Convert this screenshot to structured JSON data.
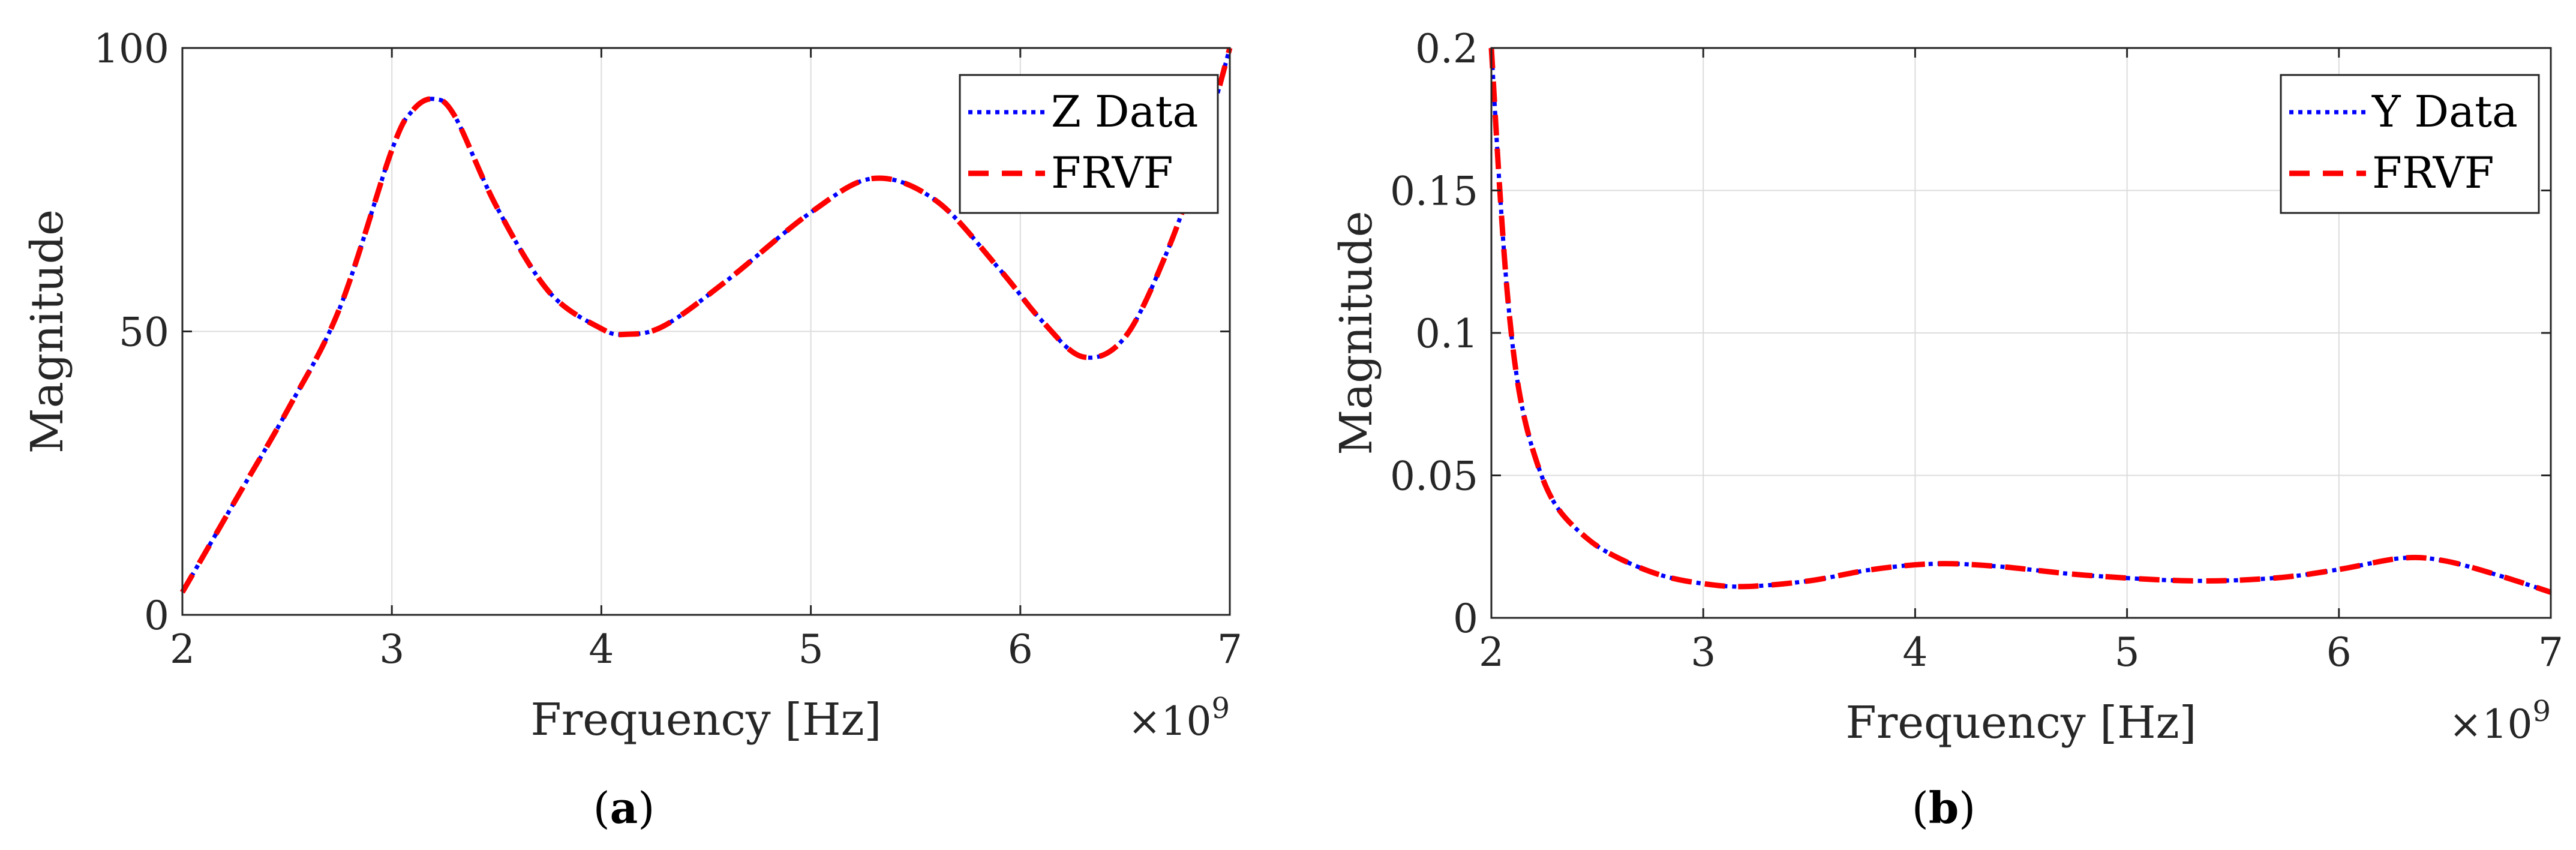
{
  "chart_data": [
    {
      "type": "line",
      "panel": "a",
      "caption_letter": "a",
      "xlabel": "Frequency [Hz]",
      "ylabel": "Magnitude",
      "x_exponent": "9",
      "x_multiplier": "×10",
      "xlim": [
        2,
        7
      ],
      "ylim": [
        0,
        100
      ],
      "xticks": [
        "2",
        "3",
        "4",
        "5",
        "6",
        "7"
      ],
      "xtick_values": [
        2,
        3,
        4,
        5,
        6,
        7
      ],
      "yticks": [
        "0",
        "50",
        "100"
      ],
      "ytick_values": [
        0,
        50,
        100
      ],
      "grid": true,
      "legend_position": "top-right",
      "x": [
        2.0,
        2.25,
        2.5,
        2.75,
        3.0,
        3.1,
        3.2,
        3.3,
        3.5,
        3.75,
        4.0,
        4.12,
        4.3,
        4.6,
        5.0,
        5.3,
        5.6,
        5.9,
        6.1,
        6.3,
        6.5,
        6.7,
        6.85,
        7.0
      ],
      "series": [
        {
          "name": "Z Data",
          "color": "#0000ff",
          "style": "dotted",
          "values": [
            4,
            20,
            36,
            54,
            82,
            89,
            91,
            88,
            72,
            57,
            50.5,
            49.5,
            51,
            59,
            71,
            77,
            73,
            61,
            52,
            45.5,
            49,
            64,
            80,
            100
          ]
        },
        {
          "name": "FRVF",
          "color": "#ff0000",
          "style": "dashed",
          "values": [
            4,
            20,
            36,
            54,
            82,
            89,
            91,
            88,
            72,
            57,
            50.5,
            49.5,
            51,
            59,
            71,
            77,
            73,
            61,
            52,
            45.5,
            49,
            64,
            80,
            100
          ]
        }
      ]
    },
    {
      "type": "line",
      "panel": "b",
      "caption_letter": "b",
      "xlabel": "Frequency [Hz]",
      "ylabel": "Magnitude",
      "x_exponent": "9",
      "x_multiplier": "×10",
      "xlim": [
        2,
        7
      ],
      "ylim": [
        0,
        0.2
      ],
      "xticks": [
        "2",
        "3",
        "4",
        "5",
        "6",
        "7"
      ],
      "xtick_values": [
        2,
        3,
        4,
        5,
        6,
        7
      ],
      "yticks": [
        "0",
        "0.05",
        "0.1",
        "0.15",
        "0.2"
      ],
      "ytick_values": [
        0,
        0.05,
        0.1,
        0.15,
        0.2
      ],
      "grid": true,
      "legend_position": "top-right",
      "x": [
        2.0,
        2.04,
        2.08,
        2.13,
        2.2,
        2.3,
        2.45,
        2.6,
        2.8,
        3.0,
        3.2,
        3.5,
        3.8,
        4.1,
        4.4,
        4.8,
        5.3,
        5.7,
        6.0,
        6.3,
        6.5,
        6.75,
        7.0
      ],
      "series": [
        {
          "name": "Y Data",
          "color": "#0000ff",
          "style": "dotted",
          "values": [
            0.2,
            0.15,
            0.11,
            0.08,
            0.058,
            0.04,
            0.028,
            0.021,
            0.015,
            0.012,
            0.011,
            0.013,
            0.017,
            0.019,
            0.018,
            0.015,
            0.013,
            0.014,
            0.017,
            0.021,
            0.02,
            0.015,
            0.009
          ]
        },
        {
          "name": "FRVF",
          "color": "#ff0000",
          "style": "dashed",
          "values": [
            0.2,
            0.15,
            0.11,
            0.08,
            0.058,
            0.04,
            0.028,
            0.021,
            0.015,
            0.012,
            0.011,
            0.013,
            0.017,
            0.019,
            0.018,
            0.015,
            0.013,
            0.014,
            0.017,
            0.021,
            0.02,
            0.015,
            0.009
          ]
        }
      ]
    }
  ]
}
